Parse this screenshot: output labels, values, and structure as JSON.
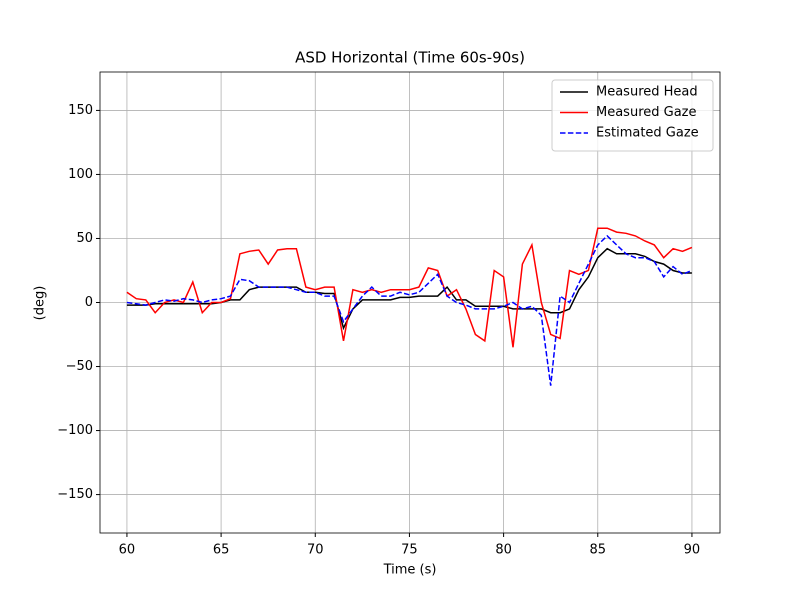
{
  "chart_data": {
    "type": "line",
    "title": "ASD Horizontal (Time 60s-90s)",
    "x_label": "Time (s)",
    "y_label": "(deg)",
    "x": [
      60,
      60.5,
      61,
      61.5,
      62,
      62.5,
      63,
      63.5,
      64,
      64.5,
      65,
      65.5,
      66,
      66.5,
      67,
      67.5,
      68,
      68.5,
      69,
      69.5,
      70,
      70.5,
      71,
      71.5,
      72,
      72.5,
      73,
      73.5,
      74,
      74.5,
      75,
      75.5,
      76,
      76.5,
      77,
      77.5,
      78,
      78.5,
      79,
      79.5,
      80,
      80.5,
      81,
      81.5,
      82,
      82.5,
      83,
      83.5,
      84,
      84.5,
      85,
      85.5,
      86,
      86.5,
      87,
      87.5,
      88,
      88.5,
      89,
      89.5,
      90
    ],
    "series": [
      {
        "name": "Measured Head",
        "color": "#000000",
        "linestyle": "solid",
        "values": [
          -2,
          -2,
          -2,
          -1,
          -1,
          -1,
          -1,
          -1,
          -1,
          -1,
          0,
          2,
          2,
          10,
          12,
          12,
          12,
          12,
          12,
          8,
          8,
          7,
          7,
          -20,
          -5,
          2,
          2,
          2,
          2,
          4,
          4,
          5,
          5,
          5,
          12,
          2,
          2,
          -3,
          -3,
          -3,
          -3,
          -5,
          -5,
          -5,
          -5,
          -8,
          -8,
          -5,
          10,
          20,
          35,
          42,
          38,
          38,
          38,
          36,
          32,
          30,
          25,
          23,
          23
        ]
      },
      {
        "name": "Measured Gaze",
        "color": "#ff0000",
        "linestyle": "solid",
        "values": [
          8,
          3,
          2,
          -8,
          0,
          2,
          0,
          16,
          -8,
          0,
          0,
          3,
          38,
          40,
          41,
          30,
          41,
          42,
          42,
          12,
          10,
          12,
          12,
          -30,
          10,
          8,
          10,
          8,
          10,
          10,
          10,
          12,
          27,
          25,
          5,
          10,
          -5,
          -25,
          -30,
          25,
          20,
          -35,
          30,
          45,
          0,
          -25,
          -28,
          25,
          22,
          25,
          58,
          58,
          55,
          54,
          52,
          48,
          45,
          35,
          42,
          40,
          43
        ]
      },
      {
        "name": "Estimated Gaze",
        "color": "#0000ff",
        "linestyle": "dashed",
        "values": [
          0,
          -1,
          -2,
          0,
          2,
          1,
          3,
          2,
          0,
          2,
          3,
          5,
          18,
          17,
          12,
          12,
          12,
          12,
          10,
          8,
          8,
          5,
          5,
          -15,
          -5,
          5,
          12,
          5,
          5,
          8,
          6,
          8,
          15,
          22,
          5,
          0,
          -2,
          -5,
          -5,
          -5,
          -3,
          0,
          -5,
          -3,
          -10,
          -65,
          5,
          0,
          15,
          30,
          45,
          52,
          45,
          38,
          35,
          35,
          32,
          20,
          28,
          22,
          25
        ]
      }
    ],
    "xlim": [
      58.57,
      91.49
    ],
    "ylim": [
      -180,
      180
    ],
    "xticks": [
      60,
      65,
      70,
      75,
      80,
      85,
      90
    ],
    "yticks": [
      {
        "value": -150,
        "label": "−150"
      },
      {
        "value": -100,
        "label": "−100"
      },
      {
        "value": -50,
        "label": "−50"
      },
      0,
      50,
      100,
      150
    ],
    "grid": true,
    "legend": "upper right"
  }
}
